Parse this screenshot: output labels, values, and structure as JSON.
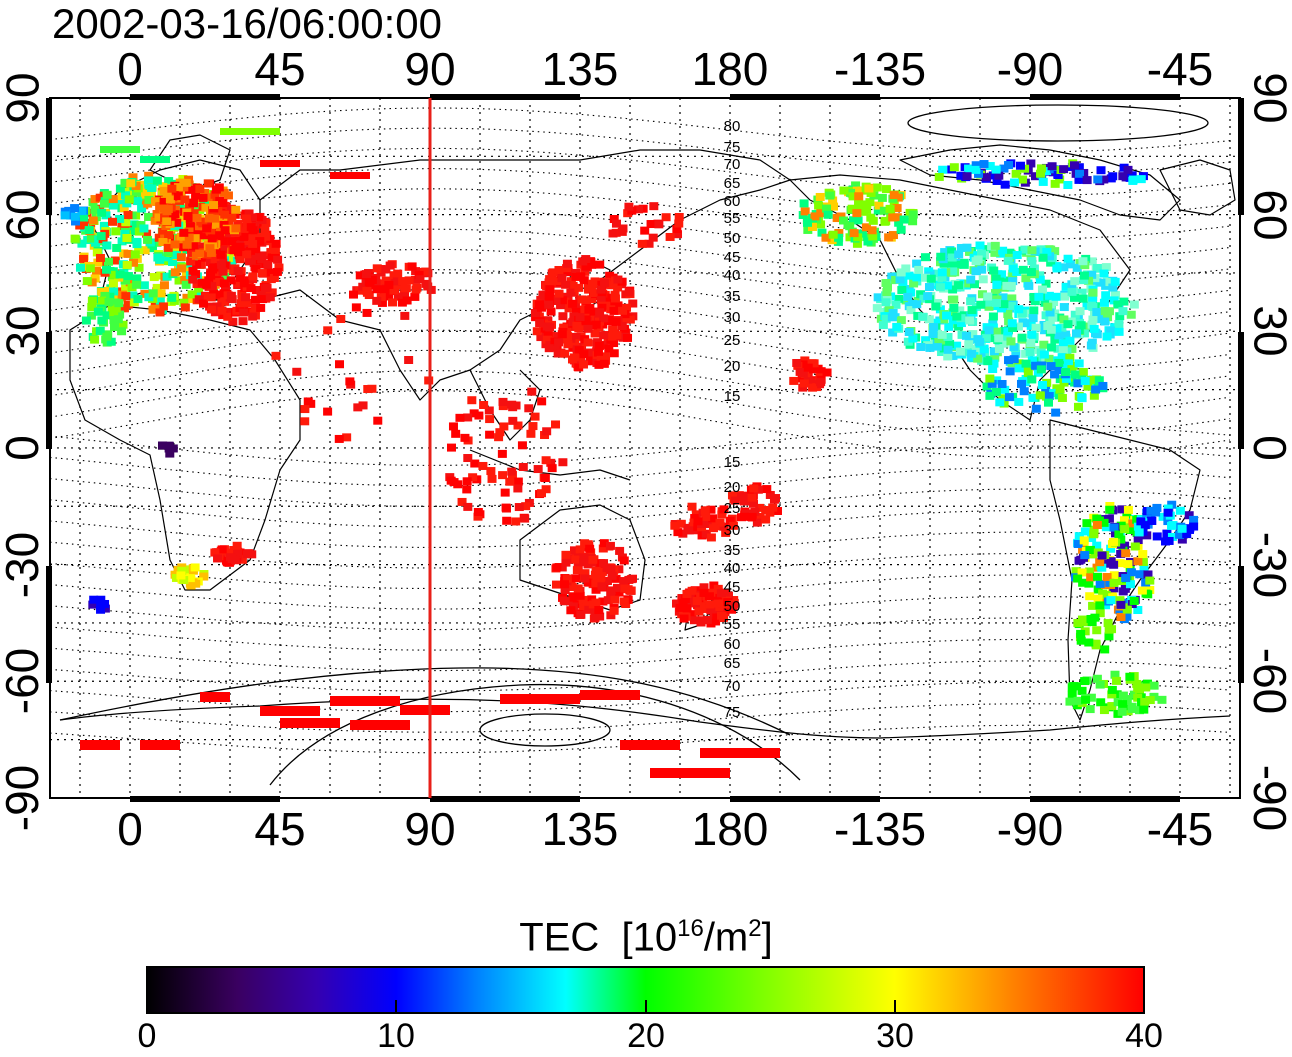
{
  "timestamp": "2002-03-16/06:00:00",
  "map": {
    "projection": "equirectangular",
    "center_longitude": 0,
    "lon_ticks_top": [
      "0",
      "45",
      "90",
      "135",
      "180",
      "-135",
      "-90",
      "-45"
    ],
    "lon_ticks_bottom": [
      "0",
      "45",
      "90",
      "135",
      "180",
      "-135",
      "-90",
      "-45"
    ],
    "lat_ticks_left": [
      "90",
      "60",
      "30",
      "0",
      "-30",
      "-60",
      "-90"
    ],
    "lat_ticks_right": [
      "90",
      "60",
      "30",
      "0",
      "-30",
      "-60",
      "-90"
    ],
    "grid": true,
    "terminator_longitude": 90,
    "terminator_color": "#e8201a",
    "contour_labels": [
      "80",
      "75",
      "70",
      "65",
      "60",
      "55",
      "50",
      "45",
      "40",
      "35",
      "30",
      "25",
      "20",
      "15",
      "15",
      "20",
      "25",
      "30",
      "35",
      "40",
      "45",
      "50",
      "55",
      "60",
      "65",
      "70",
      "75"
    ]
  },
  "colorbar": {
    "title": "TEC",
    "units_prefix": "[10",
    "units_exp1": "16",
    "units_mid": "/m",
    "units_exp2": "2",
    "units_suffix": "]",
    "min": 0,
    "max": 40,
    "ticks": [
      "0",
      "10",
      "20",
      "30",
      "40"
    ],
    "colors": [
      "#000000",
      "#3a0060",
      "#3500b0",
      "#0000ff",
      "#0080ff",
      "#00ffff",
      "#00ff80",
      "#00ff00",
      "#80ff00",
      "#ffff00",
      "#ff8000",
      "#ff0000"
    ]
  }
}
